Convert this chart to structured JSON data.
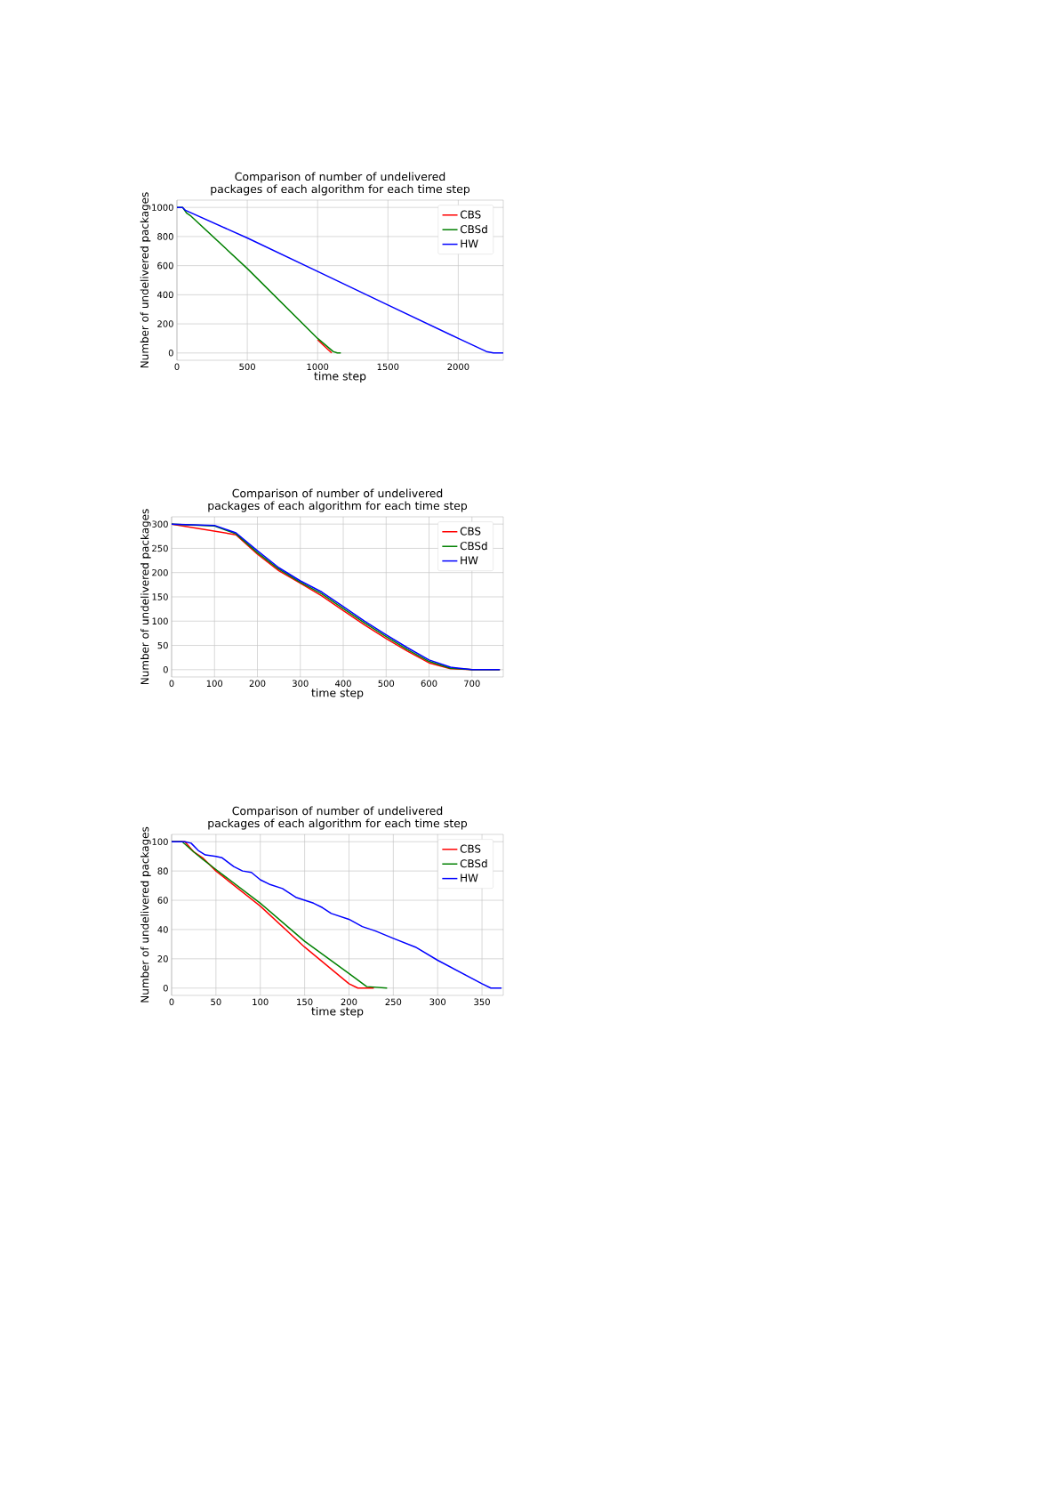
{
  "chart_data": [
    {
      "type": "line",
      "title": "Comparison of number of undelivered packages of each algorithm for each time step",
      "xlabel": "time step",
      "ylabel": "Number of undelivered packages",
      "xlim": [
        0,
        2320
      ],
      "ylim": [
        -50,
        1050
      ],
      "xticks": [
        0,
        500,
        1000,
        1500,
        2000
      ],
      "yticks": [
        0,
        200,
        400,
        600,
        800,
        1000
      ],
      "grid": true,
      "legend": "top right",
      "series": [
        {
          "name": "CBS",
          "color": "#ff0000",
          "x": [
            1000,
            1100
          ],
          "values": [
            90,
            0
          ]
        },
        {
          "name": "CBSd",
          "color": "#008000",
          "x": [
            0,
            40,
            70,
            100,
            500,
            1000,
            1110,
            1140,
            1165
          ],
          "values": [
            1000,
            1000,
            960,
            940,
            580,
            100,
            10,
            0,
            0
          ]
        },
        {
          "name": "HW",
          "color": "#0000ff",
          "x": [
            0,
            40,
            60,
            500,
            1000,
            1500,
            2000,
            2200,
            2250,
            2320
          ],
          "values": [
            1000,
            1000,
            980,
            790,
            560,
            330,
            100,
            10,
            0,
            0
          ]
        }
      ]
    },
    {
      "type": "line",
      "title": "Comparison of number of undelivered packages of each algorithm for each time step",
      "xlabel": "time step",
      "ylabel": "Number of undelivered packages",
      "xlim": [
        0,
        773
      ],
      "ylim": [
        -15,
        315
      ],
      "xticks": [
        0,
        100,
        200,
        300,
        400,
        500,
        600,
        700
      ],
      "yticks": [
        0,
        50,
        100,
        150,
        200,
        250,
        300
      ],
      "grid": true,
      "legend": "top right",
      "series": [
        {
          "name": "CBS",
          "color": "#ff0000",
          "x": [
            0,
            100,
            150,
            200,
            250,
            300,
            350,
            400,
            450,
            500,
            550,
            600,
            650,
            700,
            765
          ],
          "values": [
            300,
            null,
            278,
            238,
            204,
            178,
            152,
            122,
            92,
            64,
            38,
            14,
            2,
            0,
            0
          ]
        },
        {
          "name": "CBSd",
          "color": "#008000",
          "x": [
            0,
            100,
            150,
            200,
            250,
            300,
            350,
            400,
            450,
            500,
            550,
            600,
            650,
            700,
            765
          ],
          "values": [
            300,
            296,
            280,
            241,
            207,
            180,
            156,
            126,
            96,
            68,
            41,
            17,
            3,
            0,
            0
          ]
        },
        {
          "name": "HW",
          "color": "#0000ff",
          "x": [
            0,
            100,
            150,
            200,
            250,
            300,
            350,
            400,
            450,
            500,
            550,
            600,
            650,
            700,
            765
          ],
          "values": [
            300,
            297,
            282,
            245,
            210,
            183,
            160,
            130,
            100,
            72,
            45,
            20,
            5,
            0,
            0
          ]
        }
      ]
    },
    {
      "type": "line",
      "title": "Comparison of number of undelivered packages of each algorithm for each time step",
      "xlabel": "time step",
      "ylabel": "Number of undelivered packages",
      "xlim": [
        0,
        374
      ],
      "ylim": [
        -5,
        105
      ],
      "xticks": [
        0,
        50,
        100,
        150,
        200,
        250,
        300,
        350
      ],
      "yticks": [
        0,
        20,
        40,
        60,
        80,
        100
      ],
      "grid": true,
      "legend": "top right",
      "series": [
        {
          "name": "CBS",
          "color": "#ff0000",
          "x": [
            0,
            15,
            25,
            35,
            50,
            100,
            150,
            200,
            210,
            228
          ],
          "values": [
            100,
            100,
            93,
            89,
            80,
            56,
            28,
            3,
            0,
            0
          ]
        },
        {
          "name": "CBSd",
          "color": "#008000",
          "x": [
            0,
            12,
            25,
            35,
            50,
            100,
            150,
            200,
            220,
            243
          ],
          "values": [
            100,
            100,
            93,
            88,
            81,
            58,
            32,
            10,
            1,
            0
          ]
        },
        {
          "name": "HW",
          "color": "#0000ff",
          "x": [
            0,
            15,
            22,
            30,
            38,
            50,
            57,
            70,
            80,
            90,
            100,
            110,
            125,
            140,
            160,
            170,
            180,
            200,
            215,
            230,
            250,
            275,
            300,
            325,
            350,
            360,
            372
          ],
          "values": [
            100,
            100,
            99,
            94,
            91,
            90,
            89,
            83,
            80,
            79,
            74,
            71,
            68,
            62,
            58,
            55,
            51,
            47,
            42,
            39,
            34,
            28,
            19,
            11,
            3,
            0,
            0
          ]
        }
      ]
    }
  ]
}
